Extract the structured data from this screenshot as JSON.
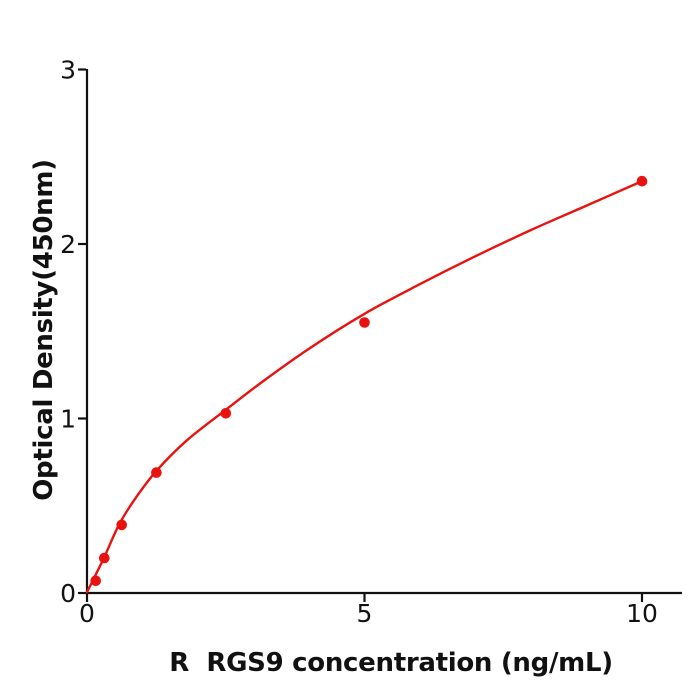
{
  "chart_data": {
    "type": "scatter",
    "title": "",
    "xlabel": "R  RGS9 concentration (ng/mL)",
    "ylabel": "Optical Density(450nm)",
    "points": {
      "x": [
        0.156,
        0.3125,
        0.625,
        1.25,
        2.5,
        5,
        10
      ],
      "y": [
        0.07,
        0.2,
        0.39,
        0.69,
        1.03,
        1.55,
        2.36
      ]
    },
    "fit_curve": {
      "x": [
        0,
        0.08,
        0.156,
        0.3125,
        0.47,
        0.625,
        0.9,
        1.25,
        1.8,
        2.5,
        3.2,
        4,
        5,
        6,
        7,
        8,
        9,
        10
      ],
      "y": [
        0.005,
        0.055,
        0.105,
        0.205,
        0.32,
        0.42,
        0.555,
        0.7,
        0.875,
        1.05,
        1.22,
        1.4,
        1.6,
        1.77,
        1.93,
        2.08,
        2.22,
        2.36
      ]
    },
    "xticks": {
      "values": [
        0,
        5,
        10
      ],
      "labels": [
        "0",
        "5",
        "10"
      ]
    },
    "yticks": {
      "values": [
        0,
        1,
        2,
        3
      ],
      "labels": [
        "0",
        "1",
        "2",
        "3"
      ]
    },
    "xlim": [
      0,
      10.72
    ],
    "ylim": [
      0,
      3
    ],
    "grid": false,
    "legend": "none",
    "colors": {
      "marker": "#e8120f",
      "line": "#e8120f",
      "axis": "#111111",
      "background": "#ffffff"
    }
  }
}
